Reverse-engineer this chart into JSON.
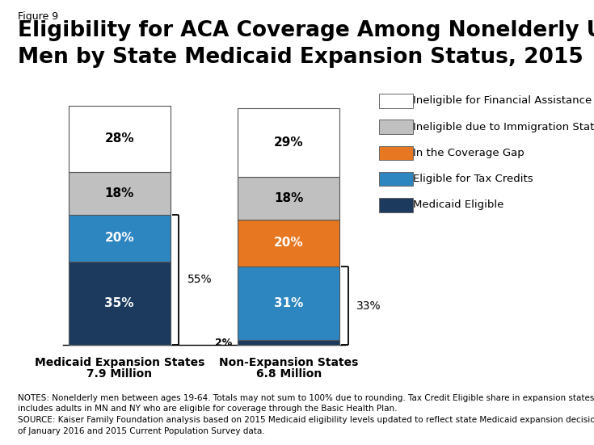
{
  "figure_label": "Figure 9",
  "title_line1": "Eligibility for ACA Coverage Among Nonelderly Uninsured",
  "title_line2": "Men by State Medicaid Expansion Status, 2015",
  "bars": {
    "expansion": {
      "label_line1": "Medicaid Expansion States",
      "label_line2": "7.9 Million",
      "segments": [
        35,
        20,
        0,
        18,
        28
      ],
      "pct_labels": [
        "35%",
        "20%",
        "",
        "18%",
        "28%"
      ]
    },
    "non_expansion": {
      "label_line1": "Non-Expansion States",
      "label_line2": "6.8 Million",
      "segments": [
        2,
        31,
        20,
        18,
        29
      ],
      "pct_labels": [
        "2%",
        "31%",
        "20%",
        "18%",
        "29%"
      ]
    }
  },
  "colors": [
    "#1b3a5e",
    "#2e86c1",
    "#e87722",
    "#c0c0c0",
    "#ffffff"
  ],
  "segment_names": [
    "Medicaid Eligible",
    "Eligible for Tax Credits",
    "In the Coverage Gap",
    "Ineligible due to Immigration Status",
    "Ineligible for Financial Assistance"
  ],
  "bracket_exp_label": "55%",
  "bracket_non_label": "33%",
  "notes_line1": "NOTES: Nonelderly men between ages 19-64. Totals may not sum to 100% due to rounding. Tax Credit Eligible share in expansion states",
  "notes_line2": "includes adults in MN and NY who are eligible for coverage through the Basic Health Plan.",
  "notes_line3": "SOURCE: Kaiser Family Foundation analysis based on 2015 Medicaid eligibility levels updated to reflect state Medicaid expansion decisions as",
  "notes_line4": "of January 2016 and 2015 Current Population Survey data.",
  "bar_edge_color": "#555555",
  "background_color": "#ffffff",
  "title_fontsize": 19,
  "figure_label_fontsize": 9,
  "bar_label_fontsize": 11,
  "legend_fontsize": 9.5,
  "notes_fontsize": 7.5
}
